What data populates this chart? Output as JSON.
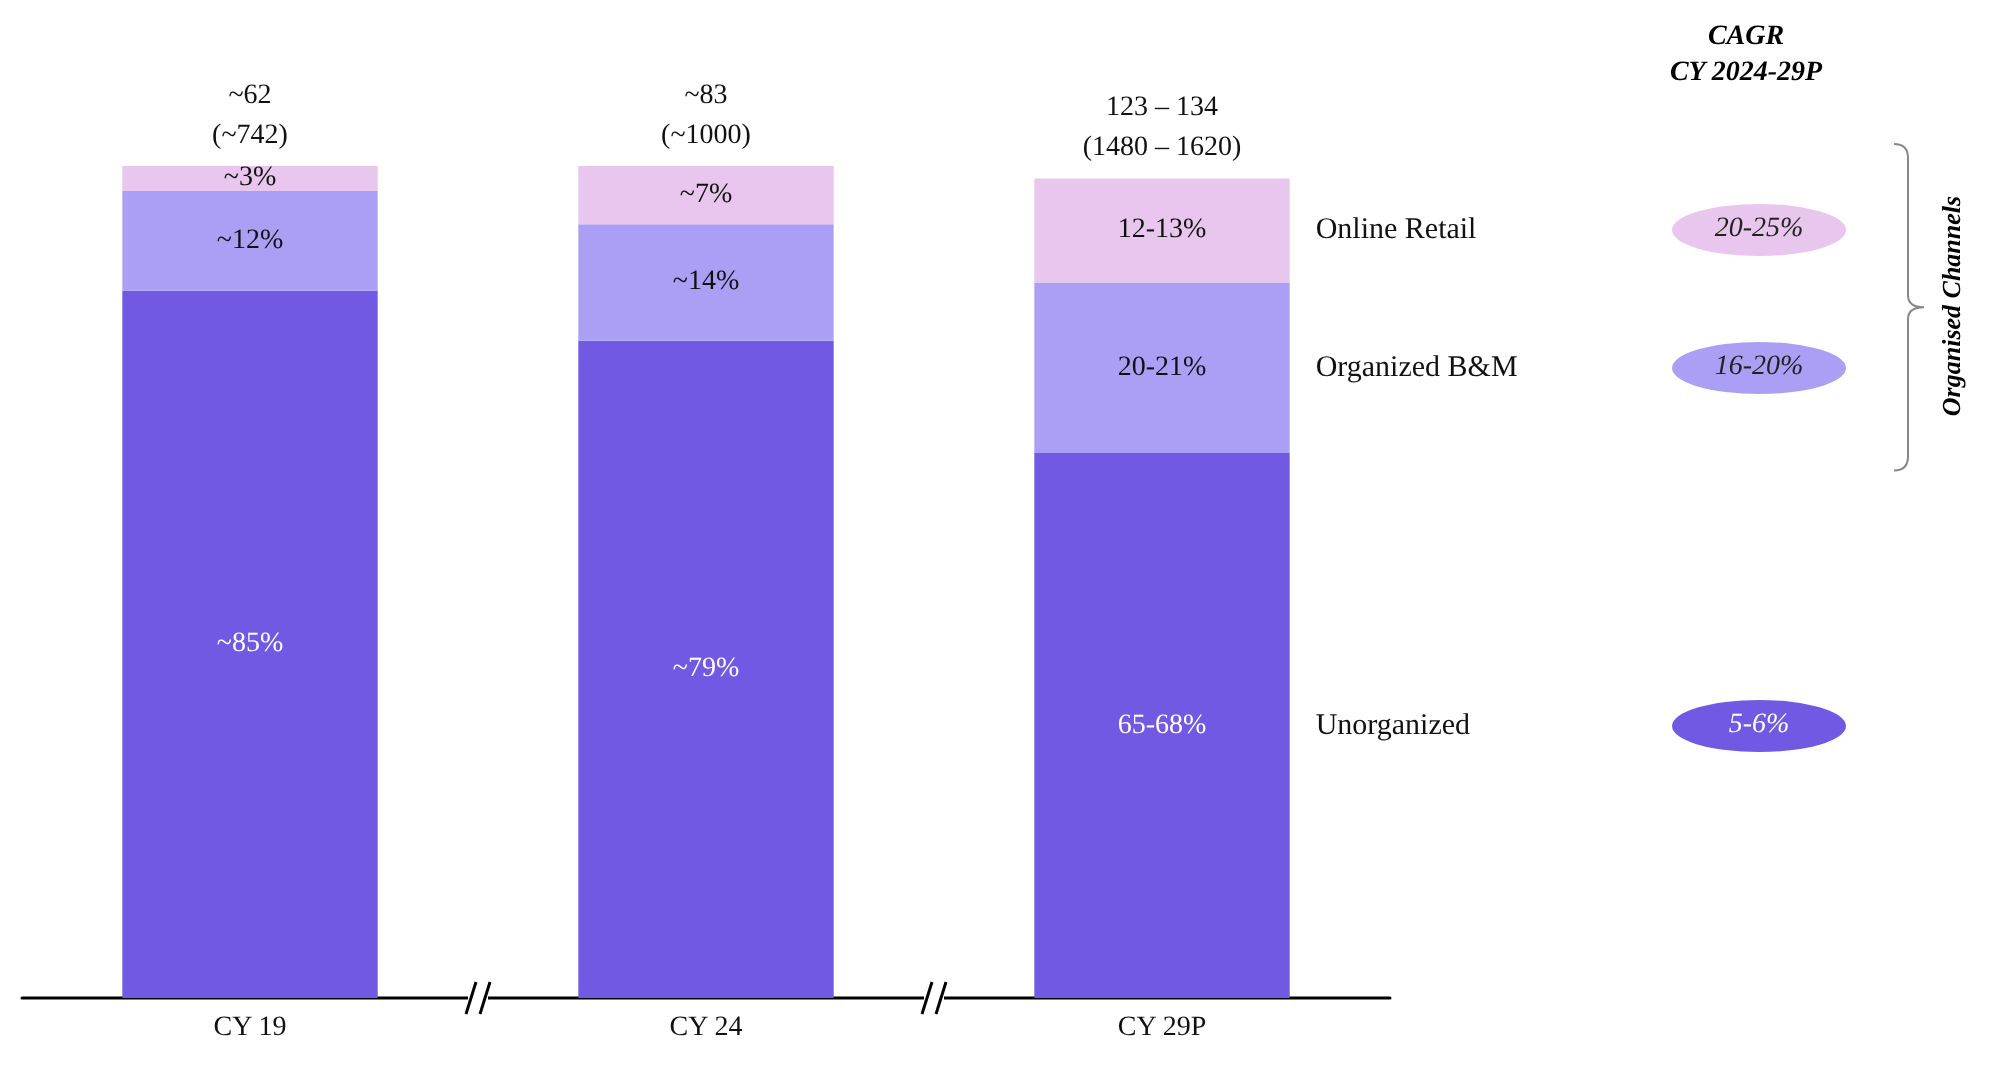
{
  "chart_data": {
    "type": "bar",
    "stacked": true,
    "categories": [
      "CY 19",
      "CY 24",
      "CY 29P"
    ],
    "series": [
      {
        "name": "Unorganized",
        "color": "#7159e3",
        "values": [
          85,
          79,
          65.5
        ],
        "value_labels": [
          "~85%",
          "~79%",
          "65-68%"
        ]
      },
      {
        "name": "Organized B&M",
        "color": "#ab9ff5",
        "values": [
          12,
          14,
          20.5
        ],
        "value_labels": [
          "~12%",
          "~14%",
          "20-21%"
        ]
      },
      {
        "name": "Online Retail",
        "color": "#e8c6ed",
        "values": [
          3,
          7,
          12.5
        ],
        "value_labels": [
          "~3%",
          "~7%",
          "12-13%"
        ]
      }
    ],
    "totals": [
      "~62\n(~742)",
      "~83\n(~1000)",
      "123 – 134\n(1480 – 1620)"
    ],
    "ylim": [
      0,
      100
    ],
    "tick_labels": "x",
    "grid": false,
    "legend": false,
    "annotations": [
      "CAGR\nCY 2024-29P",
      "5-6%",
      "16-20%",
      "20-25%",
      "Organised Channels"
    ]
  }
}
